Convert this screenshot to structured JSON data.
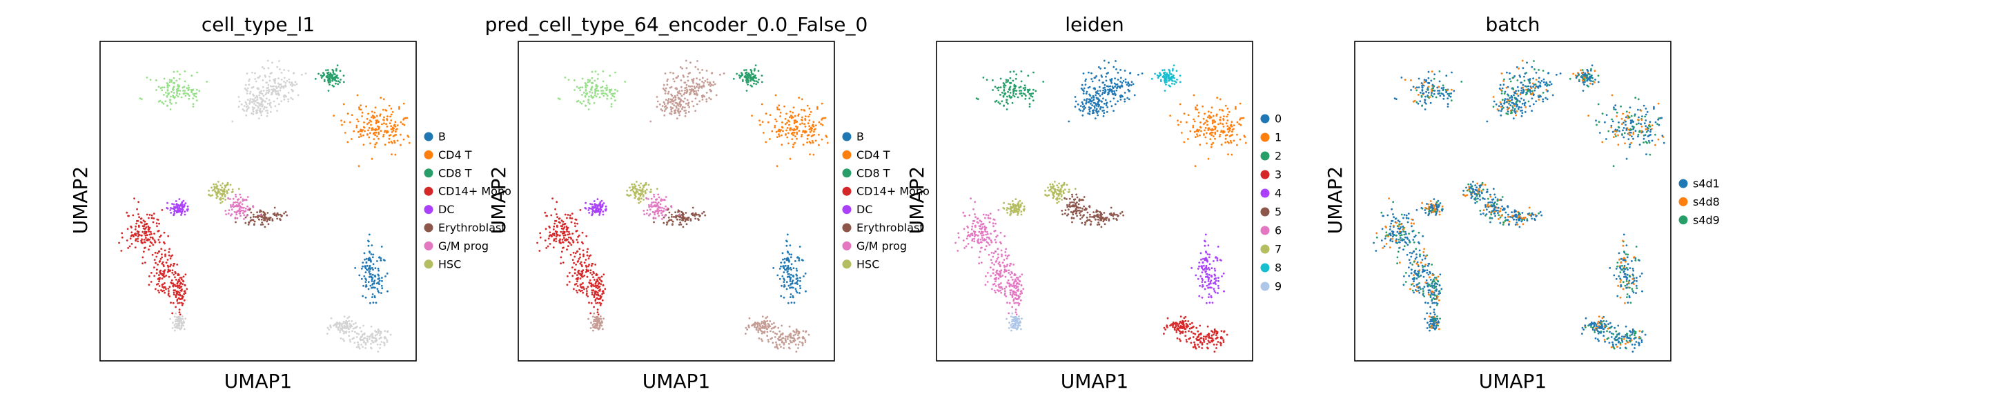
{
  "figure": {
    "panels": [
      {
        "title": "cell_type_l1",
        "xlabel": "UMAP1",
        "ylabel": "UMAP2",
        "legend": [
          {
            "label": "B",
            "color": "#1f77b4"
          },
          {
            "label": "CD4 T",
            "color": "#ff7f0e"
          },
          {
            "label": "CD8 T",
            "color": "#279e68"
          },
          {
            "label": "CD14+ Mono",
            "color": "#d62728"
          },
          {
            "label": "DC",
            "color": "#aa40fc"
          },
          {
            "label": "Erythroblast",
            "color": "#8c564b"
          },
          {
            "label": "G/M prog",
            "color": "#e377c2"
          },
          {
            "label": "HSC",
            "color": "#b5bd61"
          }
        ]
      },
      {
        "title": "pred_cell_type_64_encoder_0.0_False_0",
        "xlabel": "UMAP1",
        "ylabel": "UMAP2",
        "legend": [
          {
            "label": "B",
            "color": "#1f77b4"
          },
          {
            "label": "CD4 T",
            "color": "#ff7f0e"
          },
          {
            "label": "CD8 T",
            "color": "#279e68"
          },
          {
            "label": "CD14+ Mono",
            "color": "#d62728"
          },
          {
            "label": "DC",
            "color": "#aa40fc"
          },
          {
            "label": "Erythroblast",
            "color": "#8c564b"
          },
          {
            "label": "G/M prog",
            "color": "#e377c2"
          },
          {
            "label": "HSC",
            "color": "#b5bd61"
          }
        ]
      },
      {
        "title": "leiden",
        "xlabel": "UMAP1",
        "ylabel": "UMAP2",
        "legend": [
          {
            "label": "0",
            "color": "#1f77b4"
          },
          {
            "label": "1",
            "color": "#ff7f0e"
          },
          {
            "label": "2",
            "color": "#279e68"
          },
          {
            "label": "3",
            "color": "#d62728"
          },
          {
            "label": "4",
            "color": "#aa40fc"
          },
          {
            "label": "5",
            "color": "#8c564b"
          },
          {
            "label": "6",
            "color": "#e377c2"
          },
          {
            "label": "7",
            "color": "#b5bd61"
          },
          {
            "label": "8",
            "color": "#17becf"
          },
          {
            "label": "9",
            "color": "#aec7e8"
          }
        ]
      },
      {
        "title": "batch",
        "xlabel": "UMAP1",
        "ylabel": "UMAP2",
        "legend": [
          {
            "label": "s4d1",
            "color": "#1f77b4"
          },
          {
            "label": "s4d8",
            "color": "#ff7f0e"
          },
          {
            "label": "s4d9",
            "color": "#279e68"
          }
        ]
      }
    ]
  },
  "chart_data": [
    {
      "type": "scatter",
      "title": "cell_type_l1",
      "xlabel": "UMAP1",
      "ylabel": "UMAP2",
      "ticks": "none",
      "grid": false,
      "legend_position": "right",
      "categories": [
        "B",
        "CD4 T",
        "CD8 T",
        "CD14+ Mono",
        "DC",
        "Erythroblast",
        "G/M prog",
        "HSC"
      ],
      "unassigned_color": "#d3d3d3"
    },
    {
      "type": "scatter",
      "title": "pred_cell_type_64_encoder_0.0_False_0",
      "xlabel": "UMAP1",
      "ylabel": "UMAP2",
      "ticks": "none",
      "grid": false,
      "legend_position": "right",
      "categories": [
        "B",
        "CD4 T",
        "CD8 T",
        "CD14+ Mono",
        "DC",
        "Erythroblast",
        "G/M prog",
        "HSC"
      ]
    },
    {
      "type": "scatter",
      "title": "leiden",
      "xlabel": "UMAP1",
      "ylabel": "UMAP2",
      "ticks": "none",
      "grid": false,
      "legend_position": "right",
      "categories": [
        "0",
        "1",
        "2",
        "3",
        "4",
        "5",
        "6",
        "7",
        "8",
        "9"
      ]
    },
    {
      "type": "scatter",
      "title": "batch",
      "xlabel": "UMAP1",
      "ylabel": "UMAP2",
      "ticks": "none",
      "grid": false,
      "legend_position": "right",
      "categories": [
        "s4d1",
        "s4d8",
        "s4d9"
      ]
    }
  ]
}
